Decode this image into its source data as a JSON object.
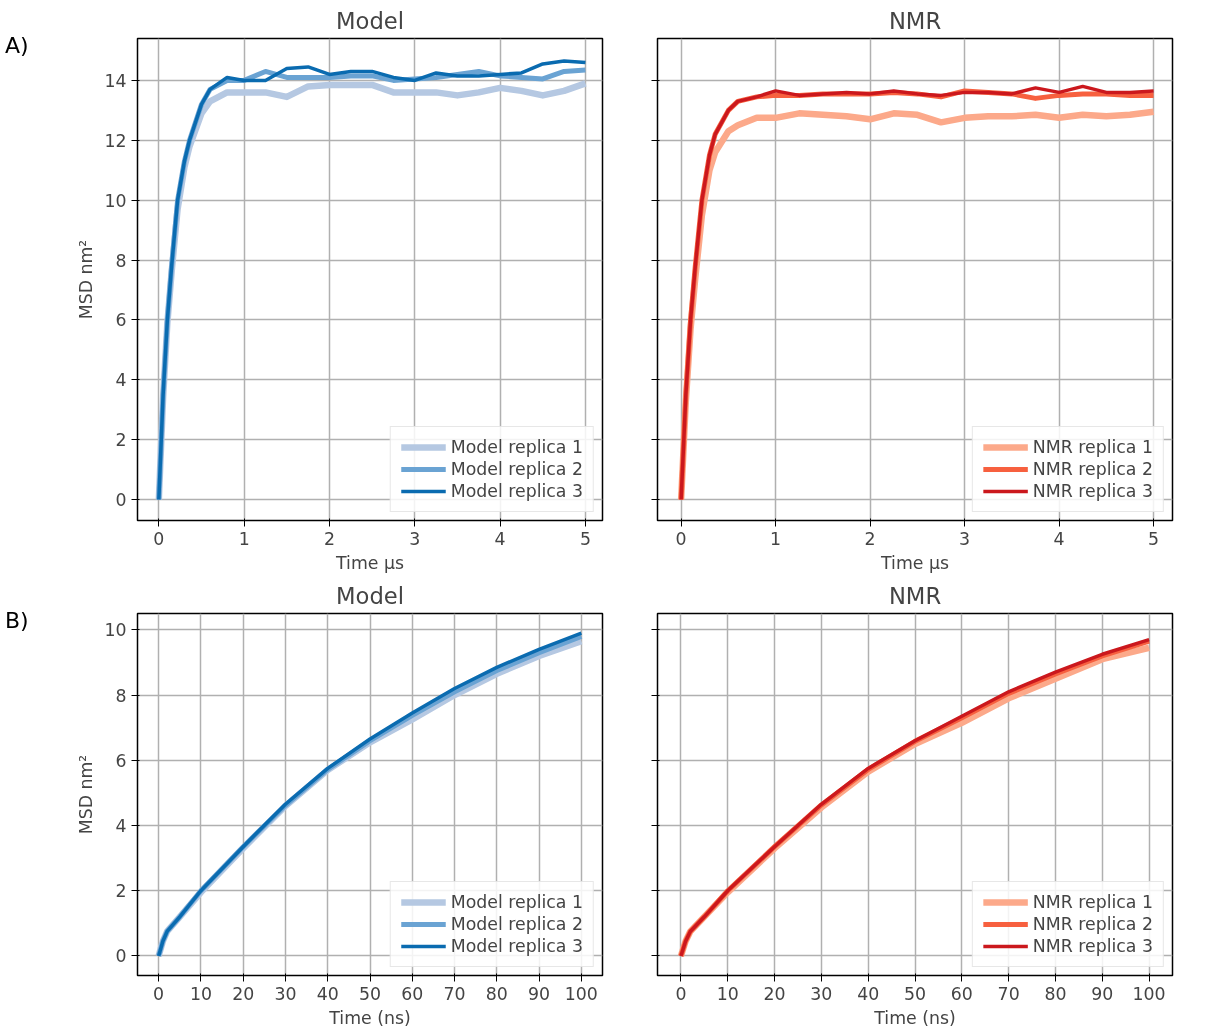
{
  "chart_data": [
    {
      "type": "line",
      "title": "Model",
      "xlabel": "Time µs",
      "ylabel": "MSD nm²",
      "annotations": [
        "A)"
      ],
      "grid": true,
      "legend": "bottom right",
      "x": [
        0,
        0.05,
        0.1,
        0.15,
        0.22,
        0.3,
        0.36,
        0.5,
        0.6,
        0.8,
        1,
        1.25,
        1.5,
        1.75,
        2,
        2.25,
        2.5,
        2.75,
        3,
        3.25,
        3.5,
        3.75,
        4,
        4.25,
        4.5,
        4.75,
        5
      ],
      "xlim": [
        -0.25,
        5.2
      ],
      "ylim": [
        -0.7,
        15.4
      ],
      "xticks": [
        0,
        1,
        2,
        3,
        4,
        5
      ],
      "yticks": [
        0,
        2,
        4,
        6,
        8,
        10,
        12,
        14
      ],
      "series": [
        {
          "name": "Model replica 1",
          "color": "#b5c8e2",
          "values": [
            0,
            3.4,
            5.9,
            7.6,
            9.7,
            11.1,
            11.8,
            12.9,
            13.3,
            13.6,
            13.6,
            13.6,
            13.45,
            13.8,
            13.85,
            13.85,
            13.85,
            13.6,
            13.6,
            13.6,
            13.5,
            13.6,
            13.75,
            13.65,
            13.5,
            13.65,
            13.9
          ]
        },
        {
          "name": "Model replica 2",
          "color": "#6aa3d3",
          "values": [
            0,
            3.5,
            6.0,
            7.8,
            10.0,
            11.3,
            12.0,
            13.2,
            13.7,
            14.0,
            14.0,
            14.3,
            14.1,
            14.1,
            14.1,
            14.15,
            14.15,
            14.0,
            14.05,
            14.1,
            14.2,
            14.3,
            14.15,
            14.1,
            14.05,
            14.3,
            14.35
          ]
        },
        {
          "name": "Model replica 3",
          "color": "#0a6bb0",
          "values": [
            0,
            3.5,
            6.0,
            7.8,
            10.0,
            11.3,
            12.0,
            13.2,
            13.7,
            14.1,
            14.0,
            14.0,
            14.4,
            14.45,
            14.2,
            14.3,
            14.3,
            14.1,
            14.0,
            14.25,
            14.15,
            14.15,
            14.2,
            14.25,
            14.55,
            14.65,
            14.6
          ]
        }
      ]
    },
    {
      "type": "line",
      "title": "NMR",
      "xlabel": "Time µs",
      "tick_labels": "x",
      "grid": true,
      "legend": "bottom right",
      "x": [
        0,
        0.05,
        0.1,
        0.15,
        0.22,
        0.3,
        0.36,
        0.5,
        0.6,
        0.8,
        1,
        1.25,
        1.5,
        1.75,
        2,
        2.25,
        2.5,
        2.75,
        3,
        3.25,
        3.5,
        3.75,
        4,
        4.25,
        4.5,
        4.75,
        5
      ],
      "xlim": [
        -0.25,
        5.2
      ],
      "ylim": [
        -0.7,
        15.4
      ],
      "xticks": [
        0,
        1,
        2,
        3,
        4,
        5
      ],
      "yticks": [
        0,
        2,
        4,
        6,
        8,
        10,
        12,
        14
      ],
      "series": [
        {
          "name": "NMR replica 1",
          "color": "#fca98a",
          "values": [
            0,
            3.3,
            5.7,
            7.4,
            9.5,
            11.0,
            11.6,
            12.3,
            12.5,
            12.75,
            12.75,
            12.9,
            12.85,
            12.8,
            12.7,
            12.9,
            12.85,
            12.6,
            12.75,
            12.8,
            12.8,
            12.85,
            12.75,
            12.85,
            12.8,
            12.85,
            12.95
          ]
        },
        {
          "name": "NMR replica 2",
          "color": "#f7603f",
          "values": [
            0,
            3.5,
            6.0,
            7.8,
            10.0,
            11.5,
            12.2,
            13.0,
            13.3,
            13.45,
            13.5,
            13.5,
            13.55,
            13.55,
            13.55,
            13.6,
            13.55,
            13.45,
            13.65,
            13.6,
            13.55,
            13.4,
            13.5,
            13.55,
            13.55,
            13.5,
            13.5
          ]
        },
        {
          "name": "NMR replica 3",
          "color": "#cb181d",
          "values": [
            0,
            3.5,
            6.0,
            7.8,
            10.0,
            11.5,
            12.2,
            13.0,
            13.3,
            13.45,
            13.65,
            13.5,
            13.55,
            13.6,
            13.55,
            13.65,
            13.55,
            13.5,
            13.6,
            13.6,
            13.55,
            13.75,
            13.6,
            13.8,
            13.6,
            13.6,
            13.65
          ]
        }
      ]
    },
    {
      "type": "line",
      "title": "Model",
      "xlabel": "Time (ns)",
      "ylabel": "MSD nm²",
      "annotations": [
        "B)"
      ],
      "grid": true,
      "legend": "bottom right",
      "x": [
        0,
        1,
        2,
        5,
        10,
        20,
        30,
        40,
        50,
        60,
        70,
        80,
        90,
        100
      ],
      "xlim": [
        -5,
        105
      ],
      "ylim": [
        -0.6,
        10.5
      ],
      "xticks": [
        0,
        10,
        20,
        30,
        40,
        50,
        60,
        70,
        80,
        90,
        100
      ],
      "yticks": [
        0,
        2,
        4,
        6,
        8,
        10
      ],
      "series": [
        {
          "name": "Model replica 1",
          "color": "#b5c8e2",
          "values": [
            0,
            0.45,
            0.75,
            1.2,
            1.95,
            3.3,
            4.6,
            5.7,
            6.55,
            7.25,
            8.0,
            8.65,
            9.2,
            9.65
          ]
        },
        {
          "name": "Model replica 2",
          "color": "#6aa3d3",
          "values": [
            0,
            0.45,
            0.75,
            1.2,
            2.0,
            3.35,
            4.62,
            5.72,
            6.6,
            7.38,
            8.1,
            8.75,
            9.3,
            9.8
          ]
        },
        {
          "name": "Model replica 3",
          "color": "#0a6bb0",
          "values": [
            0,
            0.45,
            0.75,
            1.2,
            2.0,
            3.35,
            4.65,
            5.75,
            6.65,
            7.45,
            8.2,
            8.85,
            9.4,
            9.9
          ]
        }
      ]
    },
    {
      "type": "line",
      "title": "NMR",
      "xlabel": "Time (ns)",
      "tick_labels": "x",
      "grid": true,
      "legend": "bottom right",
      "x": [
        0,
        1,
        2,
        5,
        10,
        20,
        30,
        40,
        50,
        60,
        70,
        80,
        90,
        100
      ],
      "xlim": [
        -5,
        105
      ],
      "ylim": [
        -0.6,
        10.5
      ],
      "xticks": [
        0,
        10,
        20,
        30,
        40,
        50,
        60,
        70,
        80,
        90,
        100
      ],
      "yticks": [
        0,
        2,
        4,
        6,
        8,
        10
      ],
      "series": [
        {
          "name": "NMR replica 1",
          "color": "#fca98a",
          "values": [
            0,
            0.45,
            0.75,
            1.2,
            1.95,
            3.3,
            4.55,
            5.65,
            6.5,
            7.15,
            7.9,
            8.5,
            9.1,
            9.45
          ]
        },
        {
          "name": "NMR replica 2",
          "color": "#f7603f",
          "values": [
            0,
            0.45,
            0.75,
            1.2,
            2.0,
            3.35,
            4.63,
            5.72,
            6.58,
            7.3,
            8.05,
            8.65,
            9.2,
            9.65
          ]
        },
        {
          "name": "NMR replica 3",
          "color": "#cb181d",
          "values": [
            0,
            0.45,
            0.75,
            1.2,
            2.0,
            3.35,
            4.65,
            5.75,
            6.6,
            7.35,
            8.1,
            8.7,
            9.25,
            9.7
          ]
        }
      ]
    }
  ]
}
